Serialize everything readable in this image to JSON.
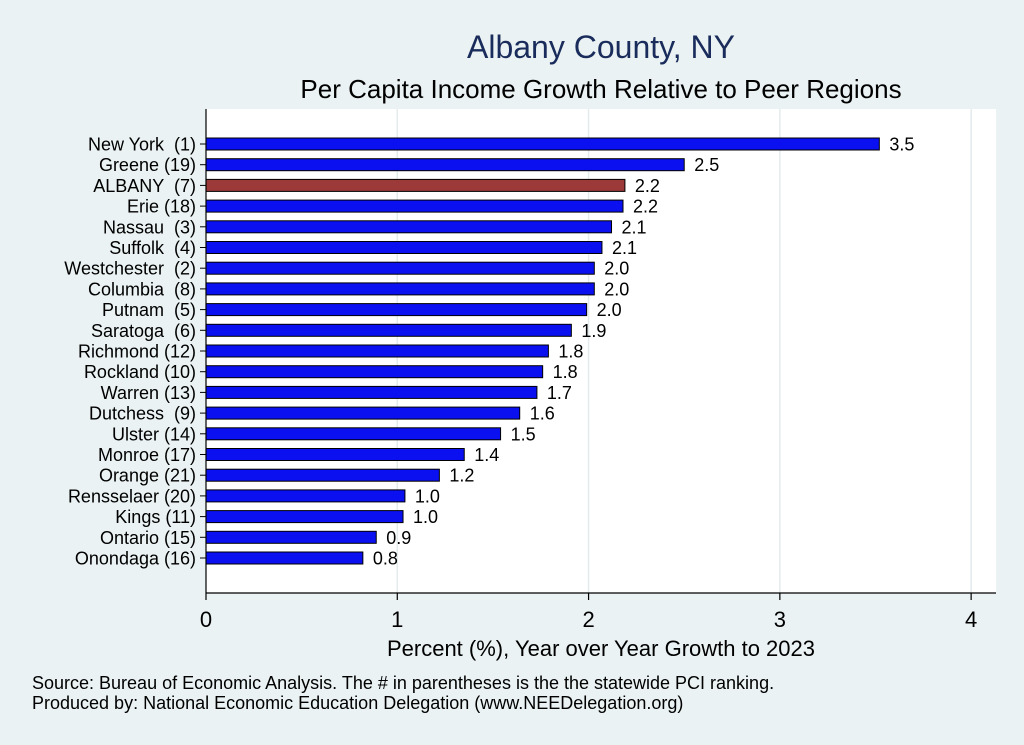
{
  "chart_data": {
    "type": "bar",
    "orientation": "horizontal",
    "title": "Albany County, NY",
    "subtitle": "Per Capita Income Growth Relative to Peer Regions",
    "xlabel": "Percent (%), Year over Year Growth to 2023",
    "xlim": [
      0,
      4.13
    ],
    "xticks": [
      "0",
      "1",
      "2",
      "3",
      "4"
    ],
    "grid": true,
    "categories": [
      "New York  (1)",
      "Greene (19)",
      "ALBANY  (7)",
      "Erie (18)",
      "Nassau  (3)",
      "Suffolk  (4)",
      "Westchester  (2)",
      "Columbia  (8)",
      "Putnam  (5)",
      "Saratoga  (6)",
      "Richmond (12)",
      "Rockland (10)",
      "Warren (13)",
      "Dutchess  (9)",
      "Ulster (14)",
      "Monroe (17)",
      "Orange (21)",
      "Rensselaer (20)",
      "Kings (11)",
      "Ontario (15)",
      "Onondaga (16)"
    ],
    "values": [
      3.52,
      2.5,
      2.19,
      2.18,
      2.12,
      2.07,
      2.03,
      2.03,
      1.99,
      1.91,
      1.79,
      1.76,
      1.73,
      1.64,
      1.54,
      1.35,
      1.22,
      1.04,
      1.03,
      0.89,
      0.82
    ],
    "labels": [
      "3.5",
      "2.5",
      "2.2",
      "2.2",
      "2.1",
      "2.1",
      "2.0",
      "2.0",
      "2.0",
      "1.9",
      "1.8",
      "1.8",
      "1.7",
      "1.6",
      "1.5",
      "1.4",
      "1.2",
      "1.0",
      "1.0",
      "0.9",
      "0.8"
    ],
    "highlight_index": 2,
    "colors": {
      "bar": "#0a10f0",
      "highlight": "#9c3a3a",
      "bar_edge": "#000000",
      "background": "#eaf2f3",
      "plot_background": "#ffffff",
      "grid": "#e3ebec",
      "title": "#1a2c5b"
    }
  },
  "footer": {
    "source": "Source: Bureau of Economic Analysis. The # in parentheses is the the statewide PCI ranking.",
    "produced": "Produced by: National Economic Education Delegation (www.NEEDelegation.org)"
  }
}
